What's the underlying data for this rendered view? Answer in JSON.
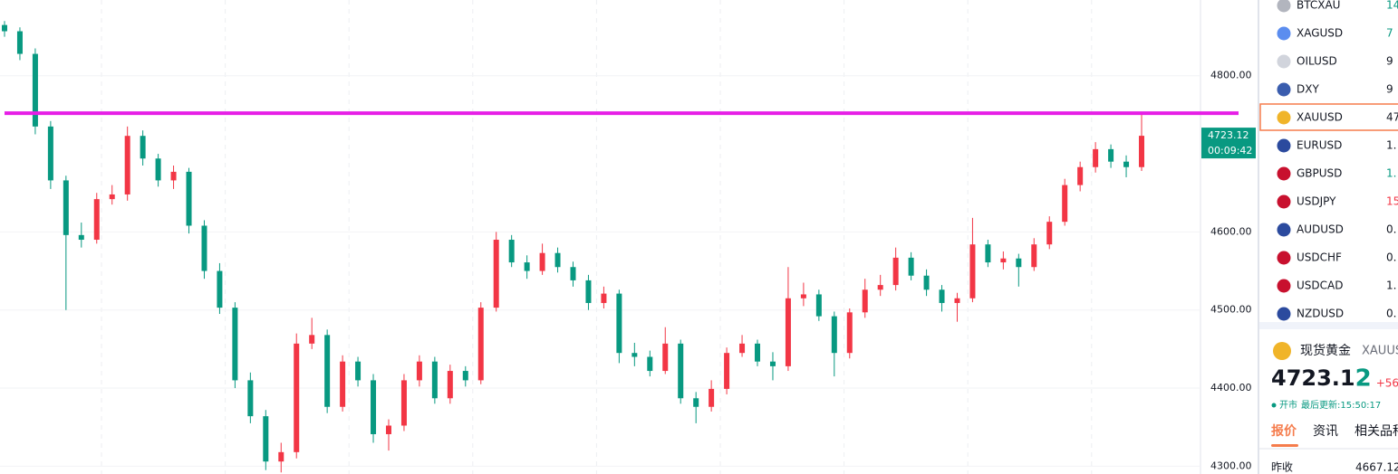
{
  "chart": {
    "type": "candlestick",
    "candles": [
      [
        4865,
        4870,
        4850,
        4857
      ],
      [
        4857,
        4862,
        4820,
        4828
      ],
      [
        4828,
        4835,
        4725,
        4735
      ],
      [
        4735,
        4742,
        4655,
        4666
      ],
      [
        4666,
        4672,
        4500,
        4596
      ],
      [
        4596,
        4612,
        4580,
        4590
      ],
      [
        4590,
        4650,
        4585,
        4642
      ],
      [
        4642,
        4660,
        4635,
        4648
      ],
      [
        4648,
        4735,
        4640,
        4723
      ],
      [
        4723,
        4730,
        4685,
        4694
      ],
      [
        4694,
        4700,
        4658,
        4666
      ],
      [
        4666,
        4685,
        4655,
        4677
      ],
      [
        4677,
        4682,
        4598,
        4608
      ],
      [
        4608,
        4615,
        4540,
        4550
      ],
      [
        4550,
        4560,
        4495,
        4503
      ],
      [
        4503,
        4510,
        4400,
        4410
      ],
      [
        4410,
        4420,
        4355,
        4364
      ],
      [
        4364,
        4372,
        4295,
        4306
      ],
      [
        4306,
        4330,
        4292,
        4318
      ],
      [
        4318,
        4470,
        4310,
        4457
      ],
      [
        4457,
        4490,
        4450,
        4468
      ],
      [
        4468,
        4475,
        4368,
        4376
      ],
      [
        4376,
        4442,
        4370,
        4434
      ],
      [
        4434,
        4440,
        4402,
        4410
      ],
      [
        4410,
        4418,
        4330,
        4341
      ],
      [
        4341,
        4360,
        4320,
        4352
      ],
      [
        4352,
        4418,
        4345,
        4410
      ],
      [
        4410,
        4442,
        4402,
        4434
      ],
      [
        4434,
        4440,
        4380,
        4387
      ],
      [
        4387,
        4430,
        4380,
        4422
      ],
      [
        4422,
        4428,
        4402,
        4410
      ],
      [
        4410,
        4510,
        4405,
        4503
      ],
      [
        4503,
        4600,
        4498,
        4590
      ],
      [
        4590,
        4596,
        4555,
        4561
      ],
      [
        4561,
        4570,
        4540,
        4550
      ],
      [
        4550,
        4585,
        4545,
        4573
      ],
      [
        4573,
        4580,
        4548,
        4555
      ],
      [
        4555,
        4562,
        4530,
        4538
      ],
      [
        4538,
        4545,
        4500,
        4509
      ],
      [
        4509,
        4530,
        4502,
        4521
      ],
      [
        4521,
        4526,
        4432,
        4445
      ],
      [
        4445,
        4458,
        4428,
        4440
      ],
      [
        4440,
        4448,
        4415,
        4422
      ],
      [
        4422,
        4478,
        4418,
        4457
      ],
      [
        4457,
        4462,
        4380,
        4387
      ],
      [
        4387,
        4395,
        4355,
        4376
      ],
      [
        4376,
        4410,
        4370,
        4399
      ],
      [
        4399,
        4452,
        4392,
        4445
      ],
      [
        4445,
        4468,
        4440,
        4457
      ],
      [
        4457,
        4462,
        4428,
        4434
      ],
      [
        4434,
        4446,
        4410,
        4428
      ],
      [
        4428,
        4555,
        4422,
        4515
      ],
      [
        4515,
        4535,
        4505,
        4520
      ],
      [
        4520,
        4526,
        4486,
        4492
      ],
      [
        4492,
        4498,
        4415,
        4445
      ],
      [
        4445,
        4502,
        4438,
        4497
      ],
      [
        4497,
        4540,
        4490,
        4526
      ],
      [
        4526,
        4545,
        4518,
        4532
      ],
      [
        4532,
        4580,
        4525,
        4567
      ],
      [
        4567,
        4574,
        4538,
        4544
      ],
      [
        4544,
        4552,
        4518,
        4526
      ],
      [
        4526,
        4532,
        4498,
        4509
      ],
      [
        4509,
        4522,
        4485,
        4515
      ],
      [
        4515,
        4618,
        4510,
        4584
      ],
      [
        4584,
        4590,
        4555,
        4561
      ],
      [
        4561,
        4575,
        4552,
        4566
      ],
      [
        4566,
        4572,
        4530,
        4555
      ],
      [
        4555,
        4592,
        4550,
        4584
      ],
      [
        4584,
        4620,
        4578,
        4613
      ],
      [
        4613,
        4668,
        4608,
        4660
      ],
      [
        4660,
        4690,
        4652,
        4683
      ],
      [
        4683,
        4715,
        4676,
        4706
      ],
      [
        4706,
        4712,
        4682,
        4690
      ],
      [
        4690,
        4698,
        4670,
        4683
      ],
      [
        4683,
        4752,
        4678,
        4723.12
      ]
    ],
    "ylim": [
      4290,
      4897
    ],
    "yticks": [
      {
        "value": 4300,
        "label": "4300.00"
      },
      {
        "value": 4400,
        "label": "4400.00"
      },
      {
        "value": 4500,
        "label": "4500.00"
      },
      {
        "value": 4600,
        "label": "4600.00"
      },
      {
        "value": 4800,
        "label": "4800.00"
      }
    ],
    "level": 4752,
    "level_color": "#e61ee6",
    "up_color": "#f23645",
    "down_color": "#089981",
    "last_price": {
      "value": 4723.12,
      "label": "4723.12"
    },
    "countdown": "00:09:42"
  },
  "watchlist": [
    {
      "symbol": "BTCXAU",
      "value": "14",
      "color": "#089981"
    },
    {
      "symbol": "XAGUSD",
      "value": "7",
      "color": "#089981"
    },
    {
      "symbol": "OILUSD",
      "value": "9",
      "color": "#131722"
    },
    {
      "symbol": "DXY",
      "value": "9",
      "color": "#131722"
    },
    {
      "symbol": "XAUUSD",
      "value": "47",
      "color": "#131722"
    },
    {
      "symbol": "EURUSD",
      "value": "1.",
      "color": "#131722"
    },
    {
      "symbol": "GBPUSD",
      "value": "1.",
      "color": "#089981"
    },
    {
      "symbol": "USDJPY",
      "value": "15",
      "color": "#f23645"
    },
    {
      "symbol": "AUDUSD",
      "value": "0.",
      "color": "#131722"
    },
    {
      "symbol": "USDCHF",
      "value": "0.",
      "color": "#131722"
    },
    {
      "symbol": "USDCAD",
      "value": "1.",
      "color": "#131722"
    },
    {
      "symbol": "NZDUSD",
      "value": "0.",
      "color": "#131722"
    }
  ],
  "detail": {
    "name": "现货黄金",
    "code": "XAUUS",
    "price_main": "4723.1",
    "price_last": "2",
    "change": "+56",
    "status": "开市",
    "updated": "最后更新:15:50:17",
    "tabs": [
      "报价",
      "资讯",
      "相关品种"
    ],
    "prev_close_label": "昨收",
    "prev_close": "4667.12"
  }
}
